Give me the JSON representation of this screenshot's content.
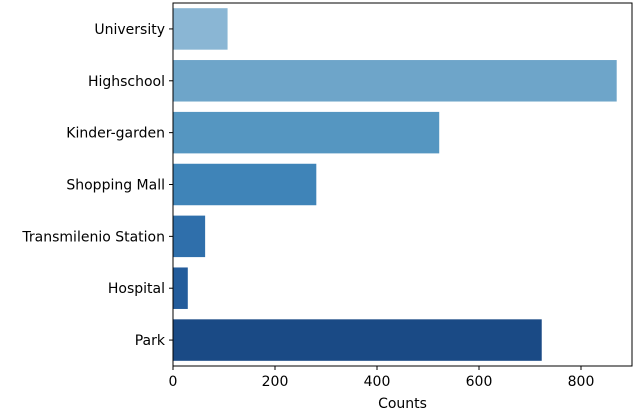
{
  "chart_data": {
    "type": "bar",
    "orientation": "horizontal",
    "categories": [
      "University",
      "Highschool",
      "Kinder-garden",
      "Shopping Mall",
      "Transmilenio Station",
      "Hospital",
      "Park"
    ],
    "values": [
      107,
      870,
      522,
      281,
      63,
      29,
      723
    ],
    "colors": [
      "#8ab6d4",
      "#6ea5c9",
      "#5596c1",
      "#3f84b8",
      "#2f6fab",
      "#235c9b",
      "#1a4a85"
    ],
    "xlabel": "Counts",
    "ylabel": "",
    "title": "",
    "xlim": [
      0,
      900
    ],
    "xticks": [
      0,
      200,
      400,
      600,
      800
    ],
    "grid": false,
    "legend": "none"
  }
}
